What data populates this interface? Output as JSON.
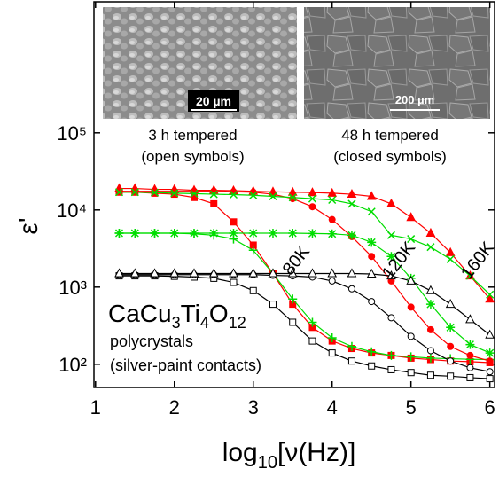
{
  "chart_data": {
    "type": "line",
    "xlabel_parts": [
      "log",
      "10",
      "[ν(Hz)]"
    ],
    "ylabel": "ε'",
    "xlim": [
      0.98,
      6.06
    ],
    "ylim": [
      50,
      5000000
    ],
    "log_y": true,
    "xticks": [
      1,
      2,
      3,
      4,
      5,
      6
    ],
    "yticks": [
      {
        "value": 100,
        "label": "10²"
      },
      {
        "value": 1000,
        "label": "10³"
      },
      {
        "value": 10000,
        "label": "10⁴"
      },
      {
        "value": 100000,
        "label": "10⁵"
      }
    ],
    "x": [
      1.3,
      1.5,
      1.75,
      2,
      2.25,
      2.5,
      2.75,
      3,
      3.25,
      3.5,
      3.75,
      4,
      4.25,
      4.5,
      4.75,
      5,
      5.25,
      5.5,
      5.75,
      6
    ],
    "series": [
      {
        "color": "#000000",
        "marker": "square",
        "filled": false,
        "values": [
          1400,
          1400,
          1400,
          1380,
          1350,
          1300,
          1150,
          900,
          600,
          350,
          200,
          140,
          110,
          95,
          85,
          78,
          72,
          70,
          67,
          65
        ]
      },
      {
        "color": "#ff0000",
        "marker": "square",
        "filled": true,
        "values": [
          17000,
          17000,
          16500,
          16000,
          14500,
          12000,
          7000,
          3500,
          1500,
          600,
          300,
          200,
          160,
          140,
          130,
          120,
          115,
          110,
          108,
          105
        ]
      },
      {
        "color": "#00dd00",
        "marker": "plus",
        "filled": false,
        "values": [
          5000,
          5000,
          5000,
          5000,
          4900,
          4700,
          4200,
          3000,
          1500,
          700,
          350,
          220,
          170,
          145,
          130,
          125,
          120,
          118,
          116,
          115
        ]
      },
      {
        "color": "#000000",
        "marker": "circle",
        "filled": false,
        "values": [
          1450,
          1450,
          1450,
          1450,
          1450,
          1450,
          1450,
          1450,
          1420,
          1400,
          1350,
          1200,
          950,
          650,
          400,
          230,
          150,
          110,
          90,
          80
        ]
      },
      {
        "color": "#ff0000",
        "marker": "circle",
        "filled": true,
        "values": [
          17500,
          17500,
          17500,
          17500,
          17500,
          17500,
          17200,
          17000,
          16000,
          14000,
          11000,
          7500,
          4500,
          2500,
          1200,
          550,
          280,
          170,
          130,
          110
        ]
      },
      {
        "color": "#00dd00",
        "marker": "star",
        "filled": false,
        "values": [
          5000,
          5000,
          5000,
          5000,
          5000,
          5000,
          5000,
          5000,
          5000,
          5000,
          4950,
          4900,
          4700,
          3800,
          2500,
          1300,
          600,
          300,
          180,
          140
        ]
      },
      {
        "color": "#000000",
        "marker": "triangle",
        "filled": false,
        "values": [
          1500,
          1500,
          1500,
          1500,
          1500,
          1500,
          1500,
          1500,
          1500,
          1500,
          1500,
          1500,
          1500,
          1480,
          1400,
          1200,
          900,
          600,
          380,
          240
        ]
      },
      {
        "color": "#ff0000",
        "marker": "triangle",
        "filled": true,
        "values": [
          19000,
          19000,
          18500,
          18500,
          18000,
          18000,
          17800,
          17500,
          17200,
          17000,
          16800,
          16500,
          16000,
          15000,
          12000,
          8000,
          5000,
          2800,
          1400,
          700
        ]
      },
      {
        "color": "#00dd00",
        "marker": "cross",
        "filled": false,
        "values": [
          17000,
          17000,
          16800,
          16500,
          16300,
          16000,
          15800,
          15500,
          15000,
          14500,
          14000,
          13500,
          12000,
          9500,
          4700,
          4200,
          3300,
          2300,
          1400,
          800
        ]
      }
    ],
    "annotations": [
      {
        "text": "80K",
        "x": 3.6,
        "y": 2000
      },
      {
        "text": "120K",
        "x": 4.9,
        "y": 2000
      },
      {
        "text": "160K",
        "x": 5.9,
        "y": 2000
      }
    ],
    "formula_parts": [
      "CaCu",
      "3",
      "Ti",
      "4",
      "O",
      "12"
    ],
    "sample_lines": [
      "polycrystals",
      "(silver-paint contacts)"
    ],
    "insets": [
      {
        "scale_bar": "20 µm",
        "caption": [
          "3 h tempered",
          "(open symbols)"
        ]
      },
      {
        "scale_bar": "200 µm",
        "caption": [
          "48 h tempered",
          "(closed symbols)"
        ]
      }
    ]
  }
}
